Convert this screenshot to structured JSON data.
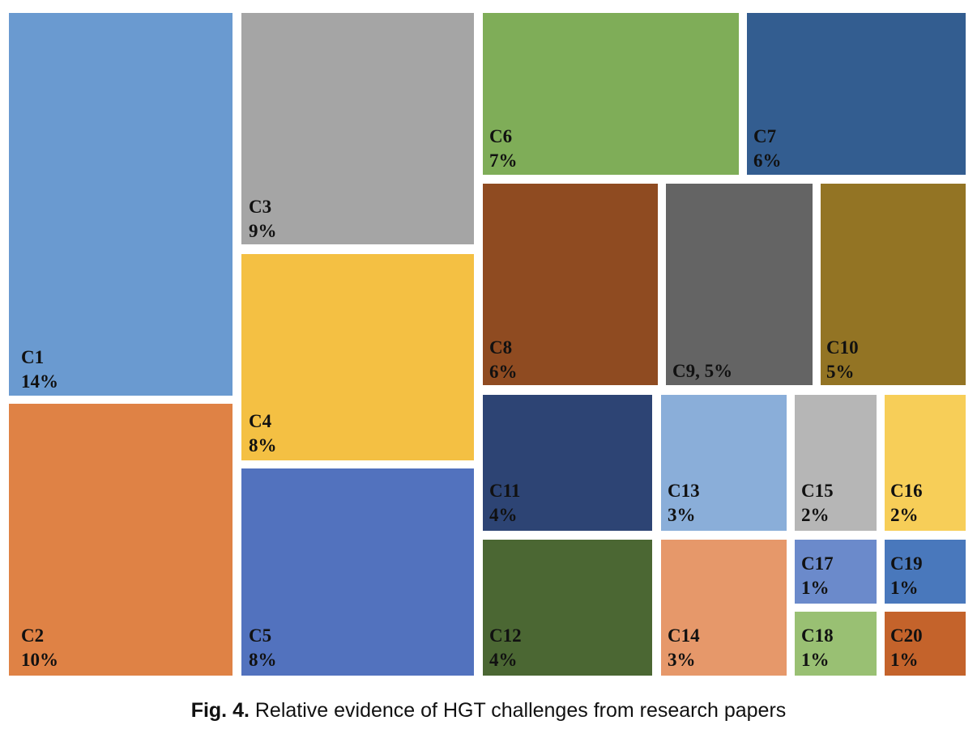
{
  "chart_data": {
    "type": "treemap",
    "unit": "%",
    "items": [
      {
        "name": "C1",
        "value": 14,
        "label_lines": [
          "C1",
          "14%"
        ],
        "color": "#6a9ad0"
      },
      {
        "name": "C2",
        "value": 10,
        "label_lines": [
          "C2",
          "10%"
        ],
        "color": "#df8245"
      },
      {
        "name": "C3",
        "value": 9,
        "label_lines": [
          "C3",
          "9%"
        ],
        "color": "#a5a5a5"
      },
      {
        "name": "C4",
        "value": 8,
        "label_lines": [
          "C4",
          "8%"
        ],
        "color": "#f4c043"
      },
      {
        "name": "C5",
        "value": 8,
        "label_lines": [
          "C5",
          "8%"
        ],
        "color": "#5272be"
      },
      {
        "name": "C6",
        "value": 7,
        "label_lines": [
          "C6",
          "7%"
        ],
        "color": "#7fad58"
      },
      {
        "name": "C7",
        "value": 6,
        "label_lines": [
          "C7",
          "6%"
        ],
        "color": "#335d90"
      },
      {
        "name": "C8",
        "value": 6,
        "label_lines": [
          "C8",
          "6%"
        ],
        "color": "#8f4b21"
      },
      {
        "name": "C9",
        "value": 5,
        "label_lines": [
          "C9, 5%"
        ],
        "color": "#646464"
      },
      {
        "name": "C10",
        "value": 5,
        "label_lines": [
          "C10",
          "5%"
        ],
        "color": "#937424"
      },
      {
        "name": "C11",
        "value": 4,
        "label_lines": [
          "C11",
          "4%"
        ],
        "color": "#2d4474"
      },
      {
        "name": "C12",
        "value": 4,
        "label_lines": [
          "C12",
          "4%"
        ],
        "color": "#4b6733"
      },
      {
        "name": "C13",
        "value": 3,
        "label_lines": [
          "C13",
          "3%"
        ],
        "color": "#8aaed9"
      },
      {
        "name": "C14",
        "value": 3,
        "label_lines": [
          "C14",
          "3%"
        ],
        "color": "#e6986a"
      },
      {
        "name": "C15",
        "value": 2,
        "label_lines": [
          "C15",
          "2%"
        ],
        "color": "#b6b6b6"
      },
      {
        "name": "C16",
        "value": 2,
        "label_lines": [
          "C16",
          "2%"
        ],
        "color": "#f7ce58"
      },
      {
        "name": "C17",
        "value": 1,
        "label_lines": [
          "C17",
          "1%"
        ],
        "color": "#6b8acb"
      },
      {
        "name": "C18",
        "value": 1,
        "label_lines": [
          "C18",
          "1%"
        ],
        "color": "#99c073"
      },
      {
        "name": "C19",
        "value": 1,
        "label_lines": [
          "C19",
          "1%"
        ],
        "color": "#4978bc"
      },
      {
        "name": "C20",
        "value": 1,
        "label_lines": [
          "C20",
          "1%"
        ],
        "color": "#c4632b"
      }
    ]
  },
  "caption": {
    "fig_label": "Fig. 4.",
    "text": " Relative evidence of HGT challenges from research papers"
  }
}
